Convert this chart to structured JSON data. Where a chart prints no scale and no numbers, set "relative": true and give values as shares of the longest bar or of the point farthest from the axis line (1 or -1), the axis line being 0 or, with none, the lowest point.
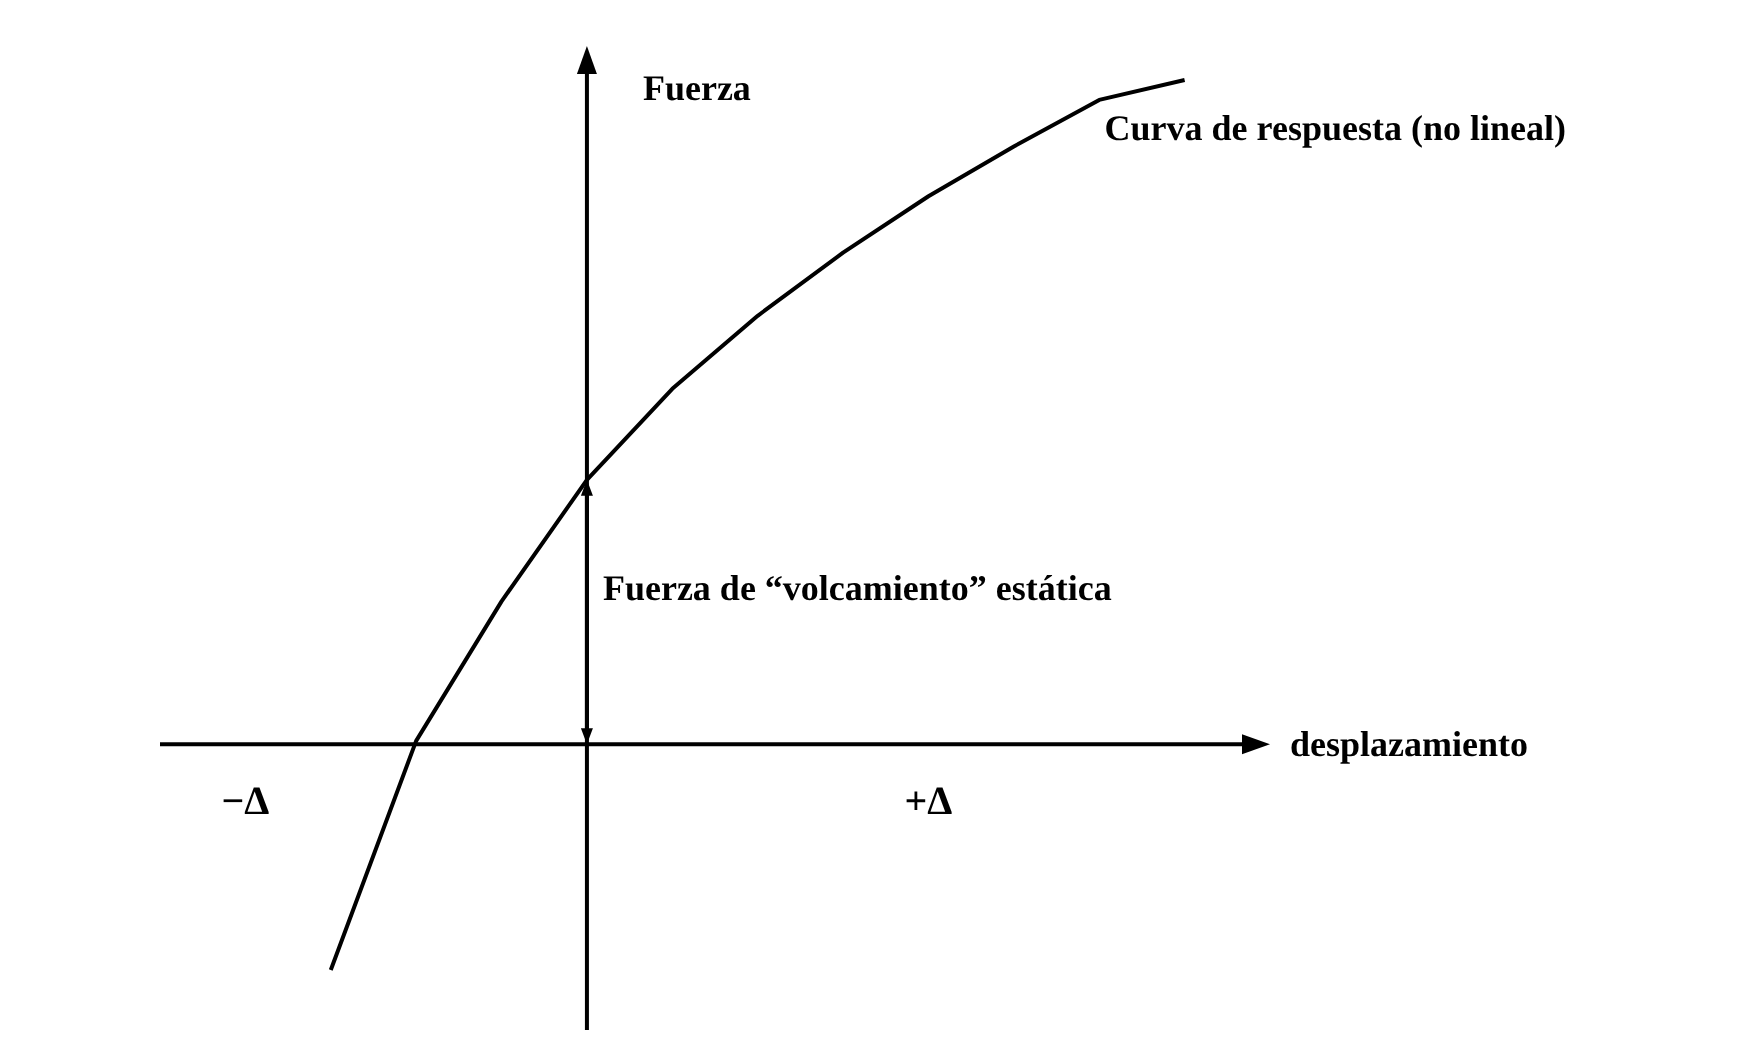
{
  "chart_data": {
    "type": "line",
    "relative": true,
    "xlabel": "desplazamiento",
    "ylabel": "Fuerza",
    "categories": [
      null,
      "−Δ",
      null,
      null,
      null,
      null,
      null,
      null,
      null,
      "+Δ",
      null,
      null,
      null,
      null
    ],
    "series": [
      {
        "name": "Curva de respuesta (no lineal)",
        "color": "#000000",
        "values": [
          null,
          null,
          -0.34,
          0.005,
          0.215,
          0.398,
          0.535,
          0.645,
          0.74,
          0.825,
          0.9,
          0.97,
          1,
          null
        ]
      }
    ],
    "annotations": [
      "Fuerza de “volcamiento” estática"
    ],
    "marker": "none",
    "line_style": "solid"
  }
}
